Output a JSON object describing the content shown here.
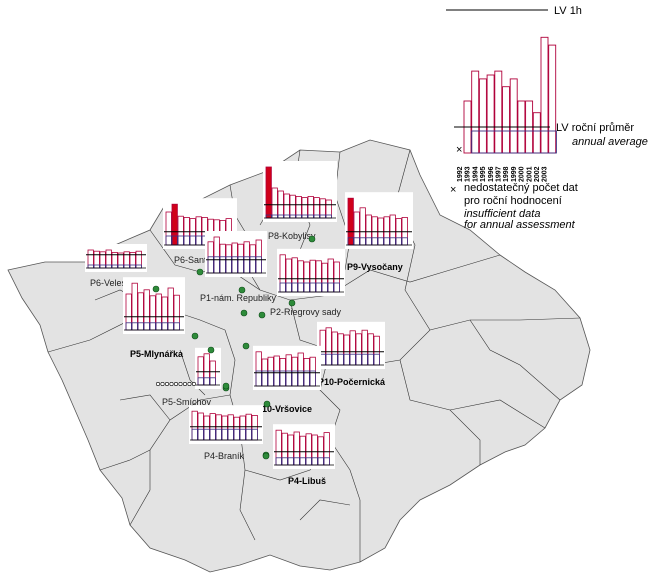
{
  "legend": {
    "lv1h_label": "LV 1h",
    "lv_annual_label": "LV roční průměr",
    "annual_average_label": "annual average",
    "years": [
      "1992",
      "1993",
      "1994",
      "1995",
      "1996",
      "1997",
      "1998",
      "1999",
      "2000",
      "2001",
      "2002",
      "2003"
    ],
    "insufficient_cz_1": "nedostatečný počet dat",
    "insufficient_cz_2": "pro roční hodnocení",
    "insufficient_en_1": "insufficient data",
    "insufficient_en_2": "for annual assessment",
    "sample_values": [
      0.4,
      0.63,
      0.57,
      0.6,
      0.63,
      0.51,
      0.57,
      0.4,
      0.4,
      0.31,
      0.89,
      0.83
    ]
  },
  "colors": {
    "hourly_bar": "#b0003a",
    "annual_bar": "#3a2d80",
    "exceed": "#d0001a",
    "district_fill": "#e3e3e3",
    "station_dot": "#2e8b3a"
  },
  "stations": [
    {
      "id": "P6-Veleslavin",
      "label": "P6-Veleslavín",
      "bold": false,
      "values": [
        0.3,
        0.28,
        0.27,
        0.3,
        0.26,
        0.25,
        0.27,
        0.26,
        0.28
      ],
      "annual": [
        0.05,
        0.05,
        0.05,
        0.05,
        0.05,
        0.05,
        0.05,
        0.05,
        0.05
      ]
    },
    {
      "id": "P6-Santinka",
      "label": "P6-Santinka",
      "bold": false,
      "exceed": [
        1
      ],
      "values": [
        0.55,
        0.68,
        0.48,
        0.46,
        0.44,
        0.47,
        0.46,
        0.43,
        0.42,
        0.41,
        0.44
      ],
      "annual": [
        0.15,
        0.15,
        0.15,
        0.15,
        0.15,
        0.15,
        0.15,
        0.15,
        0.15,
        0.15,
        0.15
      ]
    },
    {
      "id": "P8-Kobylisy",
      "label": "P8-Kobylisy",
      "bold": false,
      "exceed": [
        0
      ],
      "values": [
        0.85,
        0.5,
        0.45,
        0.4,
        0.38,
        0.36,
        0.34,
        0.36,
        0.34,
        0.32,
        0.3
      ],
      "annual": [
        0.05,
        0.05,
        0.05,
        0.05,
        0.05,
        0.05,
        0.05,
        0.05,
        0.05,
        0.05,
        0.05
      ]
    },
    {
      "id": "P9-Vysocany",
      "label": "P9-Vysočany",
      "bold": true,
      "exceed": [
        0
      ],
      "values": [
        0.78,
        0.55,
        0.62,
        0.5,
        0.47,
        0.45,
        0.47,
        0.5,
        0.44,
        0.46
      ],
      "annual": [
        0.12,
        0.12,
        0.12,
        0.12,
        0.12,
        0.12,
        0.12,
        0.12,
        0.12,
        0.12
      ]
    },
    {
      "id": "P1-nam-Republiky",
      "label": "P1-nám. Republiky",
      "bold": false,
      "values": [
        0.52,
        0.6,
        0.48,
        0.47,
        0.5,
        0.48,
        0.52,
        0.47,
        0.55
      ],
      "annual": [
        0.27,
        0.27,
        0.27,
        0.27,
        0.27,
        0.27,
        0.27,
        0.27,
        0.27
      ]
    },
    {
      "id": "P2-Riegrovy-sady",
      "label": "P2-Riegrovy sady",
      "bold": false,
      "values": [
        0.62,
        0.55,
        0.57,
        0.52,
        0.5,
        0.53,
        0.52,
        0.48,
        0.55,
        0.5
      ],
      "annual": [
        0.15,
        0.15,
        0.15,
        0.15,
        0.15,
        0.15,
        0.15,
        0.15,
        0.15,
        0.15
      ]
    },
    {
      "id": "P5-Mlynarka",
      "label": "P5-Mlynářka",
      "bold": true,
      "values": [
        0.6,
        0.78,
        0.62,
        0.67,
        0.57,
        0.6,
        0.55,
        0.7,
        0.58
      ],
      "annual": [
        0.12,
        0.12,
        0.12,
        0.12,
        0.12,
        0.12,
        0.12,
        0.12,
        0.12
      ]
    },
    {
      "id": "P10-Pocernicka",
      "label": "P10-Počernická",
      "bold": true,
      "values": [
        0.58,
        0.62,
        0.55,
        0.52,
        0.5,
        0.57,
        0.52,
        0.58,
        0.52,
        0.48
      ],
      "annual": [
        0.18,
        0.18,
        0.18,
        0.18,
        0.18,
        0.18,
        0.18,
        0.18,
        0.18,
        0.18
      ]
    },
    {
      "id": "P5-Smichov",
      "label": "P5-Smíchov",
      "bold": false,
      "values": [
        0.47,
        0.52,
        0.4
      ],
      "annual": [
        0.12,
        0.12,
        0.12
      ]
    },
    {
      "id": "P10-Vrsovice",
      "label": "P10-Vršovice",
      "bold": true,
      "values": [
        0.57,
        0.45,
        0.48,
        0.5,
        0.46,
        0.52,
        0.48,
        0.55,
        0.46,
        0.48
      ],
      "annual": [
        0.25,
        0.25,
        0.25,
        0.25,
        0.25,
        0.25,
        0.25,
        0.25,
        0.25,
        0.25
      ]
    },
    {
      "id": "P4-Branik",
      "label": "P4-Braník",
      "bold": false,
      "values": [
        0.48,
        0.45,
        0.4,
        0.44,
        0.42,
        0.4,
        0.42,
        0.38,
        0.4,
        0.43,
        0.41
      ],
      "annual": [
        0.18,
        0.18,
        0.18,
        0.18,
        0.18,
        0.18,
        0.18,
        0.18,
        0.18,
        0.18,
        0.18
      ]
    },
    {
      "id": "P4-Libus",
      "label": "P4-Libuš",
      "bold": true,
      "values": [
        0.58,
        0.53,
        0.5,
        0.55,
        0.48,
        0.52,
        0.5,
        0.47,
        0.54
      ],
      "annual": [
        0.12,
        0.12,
        0.12,
        0.12,
        0.12,
        0.12,
        0.12,
        0.12,
        0.12
      ]
    }
  ]
}
